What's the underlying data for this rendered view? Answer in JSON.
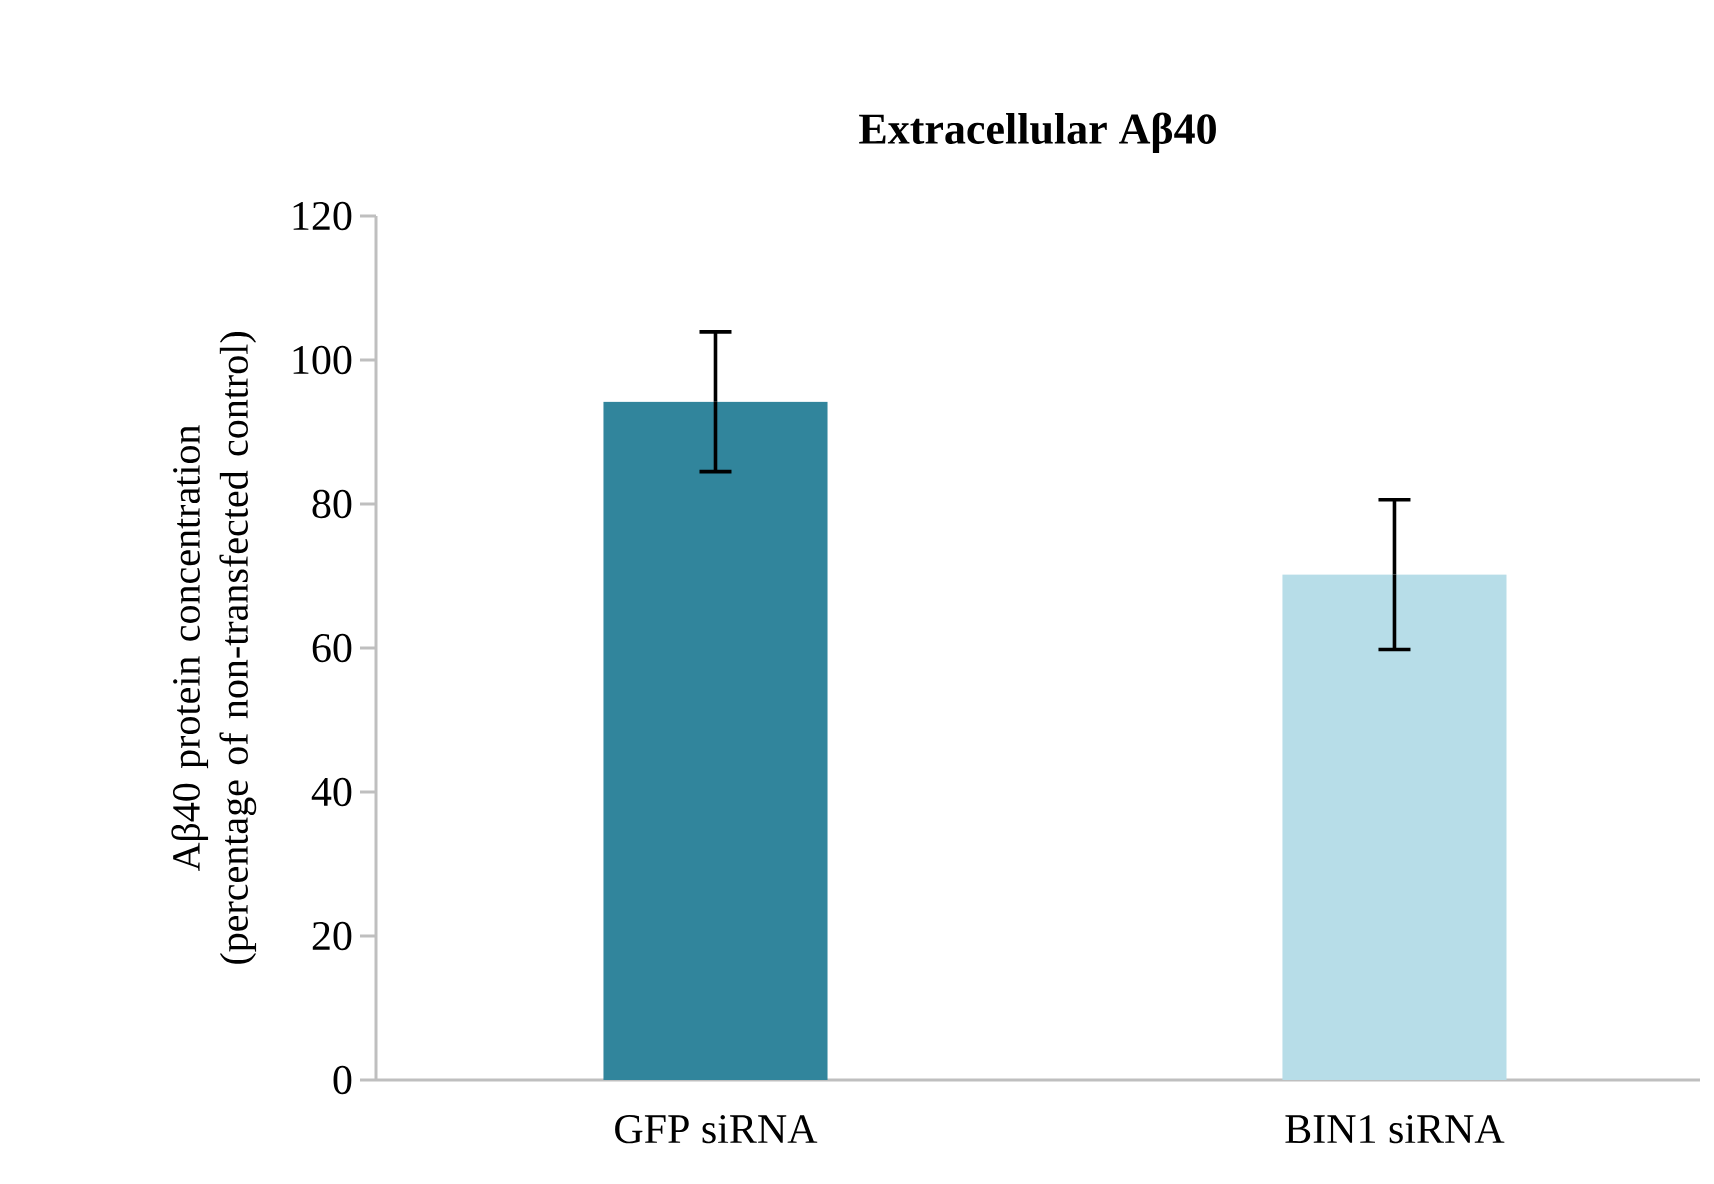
{
  "chart_data": {
    "type": "bar",
    "title": "Extracellular  Aβ40",
    "ylabel": "Aβ40 protein concentration (percentage of non-transfected control)",
    "categories": [
      "GFP siRNA",
      "BIN1 siRNA"
    ],
    "values": [
      94.2,
      70.2
    ],
    "errors": [
      9.7,
      10.4
    ],
    "colors": [
      "#31859c",
      "#b7dde8"
    ],
    "ylim": [
      0,
      120
    ],
    "yticks": [
      0,
      20,
      40,
      60,
      80,
      100,
      120
    ],
    "grid": false
  }
}
